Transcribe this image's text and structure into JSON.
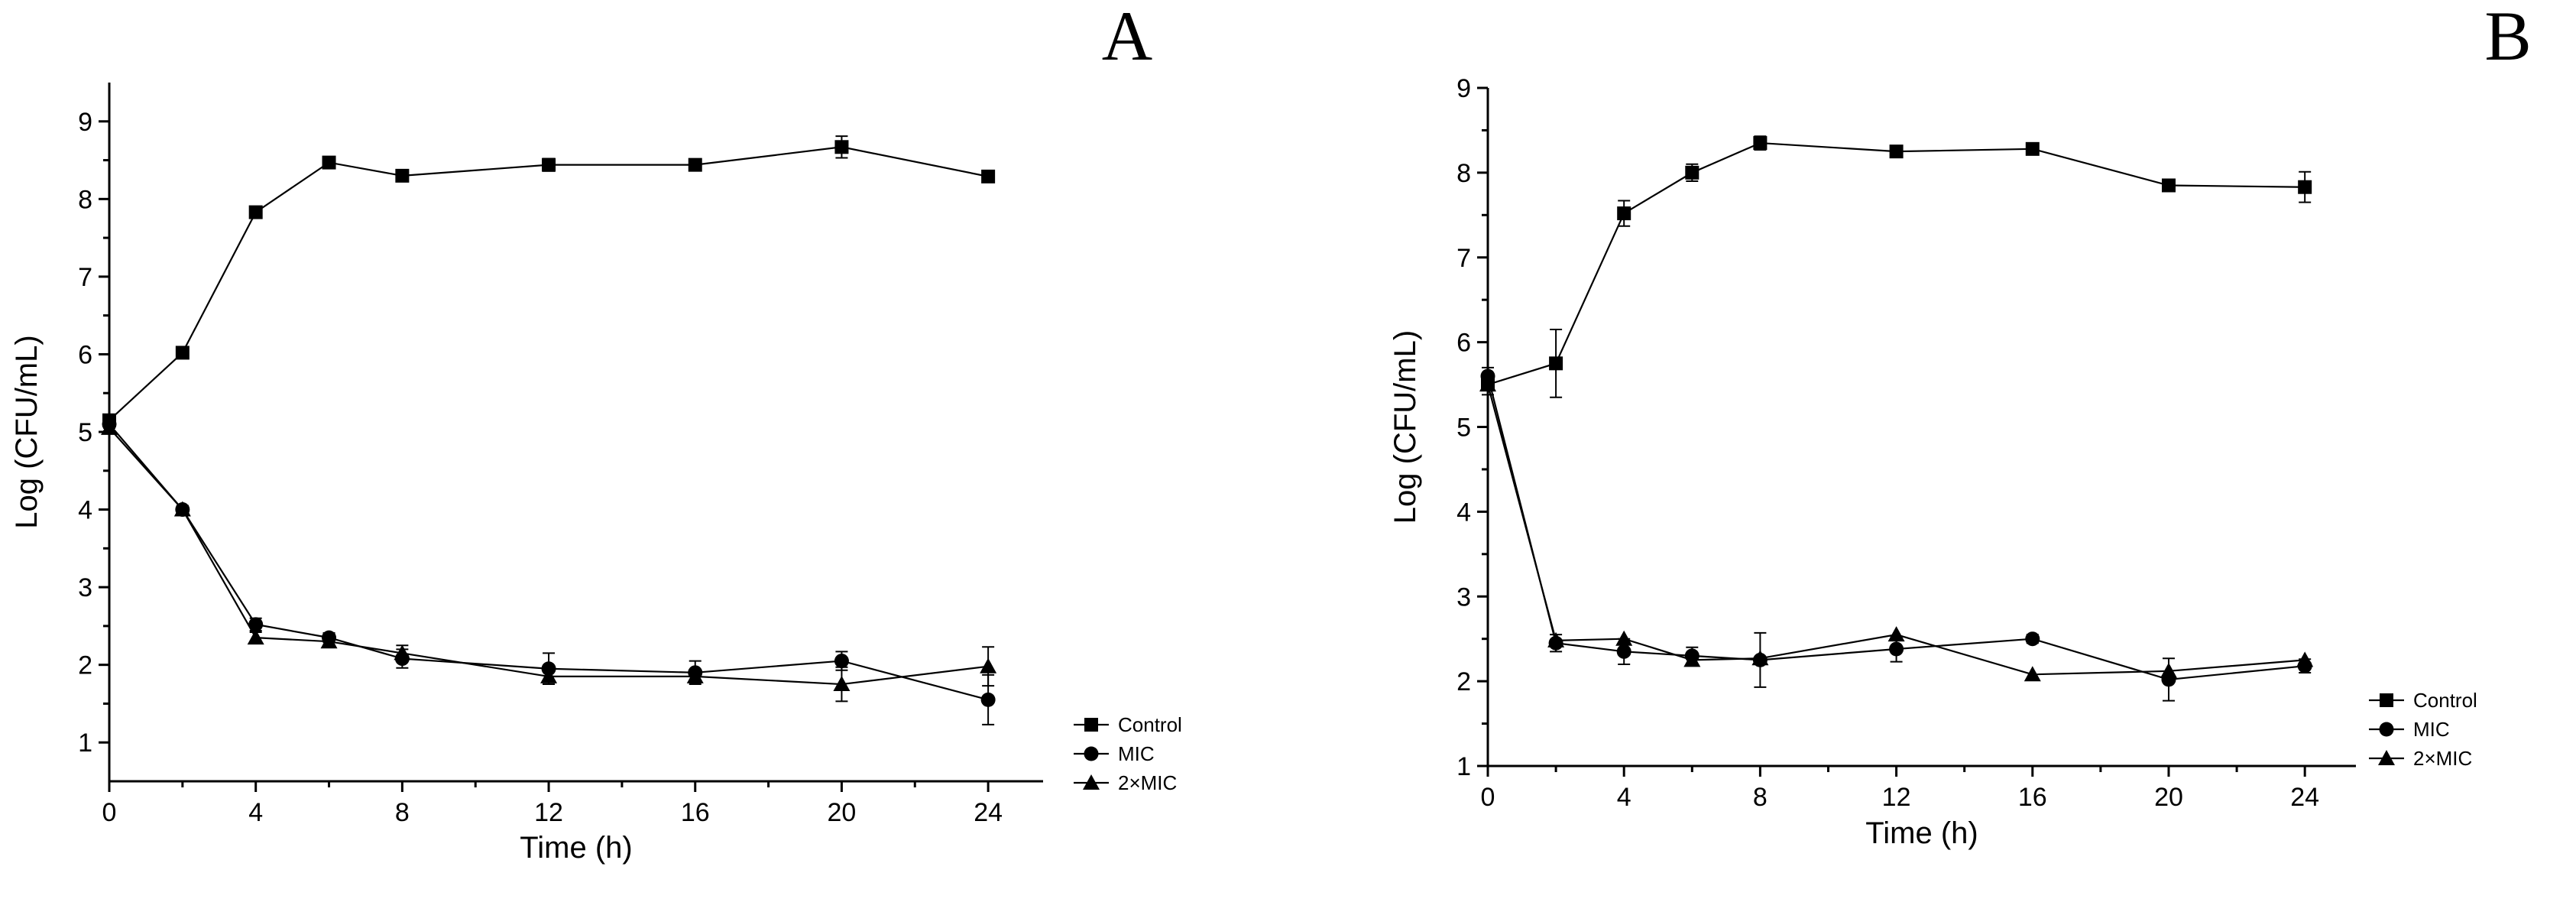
{
  "chart_data": [
    {
      "type": "line",
      "title": "A",
      "xlabel": "Time (h)",
      "ylabel": "Log (CFU/mL)",
      "xlim": [
        0,
        25.5
      ],
      "ylim": [
        0.5,
        9.5
      ],
      "xticks": [
        0,
        4,
        8,
        12,
        16,
        20,
        24
      ],
      "yticks": [
        1,
        2,
        3,
        4,
        5,
        6,
        7,
        8,
        9
      ],
      "legend": "bottom-right",
      "x": [
        0,
        2,
        4,
        6,
        8,
        12,
        16,
        20,
        24
      ],
      "series": [
        {
          "name": "Control",
          "marker": "square",
          "values": [
            5.15,
            6.02,
            7.83,
            8.47,
            8.3,
            8.44,
            8.44,
            8.67,
            8.29
          ],
          "errors": [
            0.05,
            0.04,
            0.06,
            0.05,
            0.06,
            0.08,
            0.05,
            0.14,
            0.06
          ]
        },
        {
          "name": "MIC",
          "marker": "circle",
          "values": [
            5.1,
            4.0,
            2.52,
            2.35,
            2.08,
            1.95,
            1.9,
            2.05,
            1.55
          ],
          "errors": [
            0.05,
            0.05,
            0.08,
            0.06,
            0.12,
            0.2,
            0.15,
            0.12,
            0.32
          ]
        },
        {
          "name": "2×MIC",
          "marker": "triangle",
          "values": [
            5.05,
            4.0,
            2.35,
            2.3,
            2.15,
            1.85,
            1.85,
            1.75,
            1.98
          ],
          "errors": [
            0.05,
            0.05,
            0.07,
            0.05,
            0.1,
            0.1,
            0.08,
            0.22,
            0.25
          ]
        }
      ]
    },
    {
      "type": "line",
      "title": "B",
      "xlabel": "Time (h)",
      "ylabel": "Log (CFU/mL)",
      "xlim": [
        0,
        25.5
      ],
      "ylim": [
        1,
        9
      ],
      "xticks": [
        0,
        4,
        8,
        12,
        16,
        20,
        24
      ],
      "yticks": [
        1,
        2,
        3,
        4,
        5,
        6,
        7,
        8,
        9
      ],
      "legend": "bottom-right",
      "x": [
        0,
        2,
        4,
        6,
        8,
        12,
        16,
        20,
        24
      ],
      "series": [
        {
          "name": "Control",
          "marker": "square",
          "values": [
            5.5,
            5.75,
            7.52,
            8.0,
            8.35,
            8.25,
            8.28,
            7.85,
            7.83
          ],
          "errors": [
            0.12,
            0.4,
            0.15,
            0.1,
            0.08,
            0.05,
            0.05,
            0.05,
            0.18
          ]
        },
        {
          "name": "MIC",
          "marker": "circle",
          "values": [
            5.6,
            2.45,
            2.35,
            2.3,
            2.25,
            2.38,
            2.5,
            2.02,
            2.18
          ],
          "errors": [
            0.1,
            0.1,
            0.15,
            0.1,
            0.32,
            0.15,
            0.05,
            0.25,
            0.08
          ]
        },
        {
          "name": "2×MIC",
          "marker": "triangle",
          "values": [
            5.5,
            2.48,
            2.5,
            2.25,
            2.27,
            2.55,
            2.08,
            2.12,
            2.25
          ]
        }
      ]
    }
  ]
}
